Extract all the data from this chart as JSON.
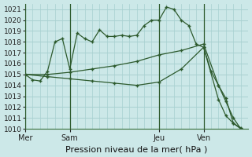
{
  "xlabel": "Pression niveau de la mer( hPa )",
  "ylim": [
    1010,
    1021.5
  ],
  "yticks": [
    1010,
    1011,
    1012,
    1013,
    1014,
    1015,
    1016,
    1017,
    1018,
    1019,
    1020,
    1021
  ],
  "bg_color": "#cce8e8",
  "grid_color": "#a8d0d0",
  "line_color": "#2d5a2d",
  "day_labels": [
    "Mer",
    "Sam",
    "Jeu",
    "Ven"
  ],
  "day_positions": [
    0,
    6,
    18,
    24
  ],
  "xlim": [
    0,
    30
  ],
  "line1_x": [
    0,
    1,
    2,
    3,
    4,
    5,
    6,
    7,
    8,
    9,
    10,
    11,
    12,
    13,
    14,
    15,
    16,
    17,
    18,
    19,
    20,
    21,
    22,
    23,
    24,
    25,
    26,
    27,
    28,
    29
  ],
  "line1_y": [
    1015.0,
    1014.5,
    1014.4,
    1015.3,
    1018.0,
    1018.3,
    1015.5,
    1018.8,
    1018.3,
    1018.0,
    1019.1,
    1018.5,
    1018.5,
    1018.6,
    1018.5,
    1018.6,
    1019.5,
    1020.0,
    1020.0,
    1021.2,
    1021.0,
    1020.0,
    1019.5,
    1017.8,
    1017.5,
    1015.3,
    1014.0,
    1012.8,
    1010.5,
    1010.1
  ],
  "line2_x": [
    0,
    3,
    6,
    9,
    12,
    15,
    18,
    21,
    24,
    26,
    27,
    28,
    29
  ],
  "line2_y": [
    1015.0,
    1015.0,
    1015.2,
    1015.5,
    1015.8,
    1016.2,
    1016.8,
    1017.2,
    1017.8,
    1014.0,
    1012.5,
    1011.0,
    1010.0
  ],
  "line3_x": [
    0,
    3,
    6,
    9,
    12,
    15,
    18,
    21,
    24,
    26,
    27,
    28,
    29
  ],
  "line3_y": [
    1015.0,
    1014.8,
    1014.6,
    1014.4,
    1014.2,
    1014.0,
    1014.3,
    1015.5,
    1017.5,
    1012.7,
    1011.2,
    1010.5,
    1010.0
  ],
  "xlabel_fontsize": 8,
  "ytick_fontsize": 6.5,
  "xtick_fontsize": 7
}
